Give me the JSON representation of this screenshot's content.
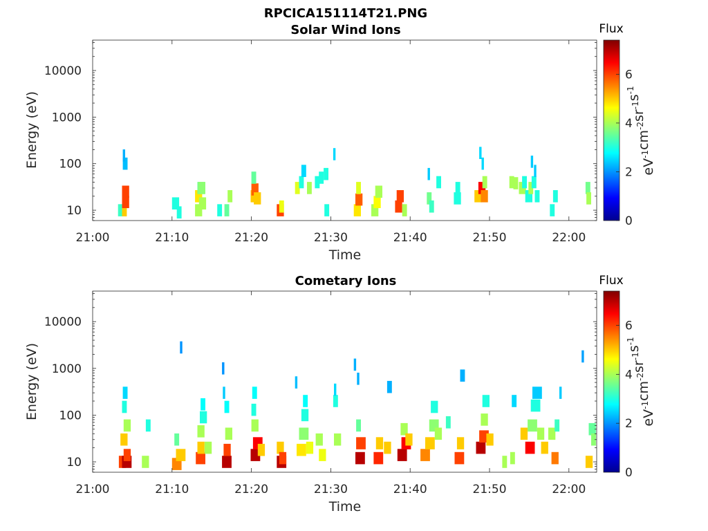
{
  "figure_title": "RPCICA151114T21.PNG",
  "colorscale": {
    "stops": [
      "#00008f",
      "#0000ff",
      "#00ffff",
      "#ffff00",
      "#ff0000",
      "#800000"
    ]
  },
  "chart_data": [
    {
      "type": "heatmap",
      "title": "Solar Wind Ions",
      "xlabel": "Time",
      "ylabel": "Energy (eV)",
      "xticks": [
        "21:00",
        "21:10",
        "21:20",
        "21:30",
        "21:40",
        "21:50",
        "22:00"
      ],
      "xlim_minutes": [
        0,
        63.5
      ],
      "yticks": [
        "10",
        "100",
        "1000",
        "10000"
      ],
      "yscale": "log",
      "ylim": [
        6,
        45000
      ],
      "colorbar": {
        "title": "Flux",
        "label": "eV-1cm-2sr-1s-1",
        "ticks": [
          "0",
          "2",
          "4",
          "6"
        ],
        "range": [
          0,
          7.4
        ]
      },
      "cells": [
        [
          3.2,
          2,
          10,
          3.2
        ],
        [
          3.7,
          2,
          10,
          5
        ],
        [
          3.7,
          3,
          15,
          6
        ],
        [
          3.7,
          3,
          25,
          6
        ],
        [
          3.8,
          2,
          100,
          2.3
        ],
        [
          3.8,
          1,
          150,
          2.2
        ],
        [
          10,
          3,
          14,
          3
        ],
        [
          10.6,
          2,
          9,
          3
        ],
        [
          12.9,
          3,
          10,
          4
        ],
        [
          12.9,
          3,
          20,
          4.8
        ],
        [
          13.2,
          3,
          30,
          3.6
        ],
        [
          13.3,
          3,
          30,
          3.8
        ],
        [
          13.4,
          3,
          14,
          4
        ],
        [
          15.7,
          2,
          10,
          3
        ],
        [
          16.6,
          2,
          10,
          3.5
        ],
        [
          17,
          2,
          20,
          4
        ],
        [
          19.9,
          3,
          20,
          5
        ],
        [
          20,
          3,
          28,
          5.8
        ],
        [
          20,
          2,
          50,
          3.5
        ],
        [
          20.3,
          3,
          18,
          5
        ],
        [
          23.2,
          3,
          10,
          6
        ],
        [
          23.5,
          2,
          12,
          4.5
        ],
        [
          25.5,
          2,
          30,
          4.4
        ],
        [
          26,
          2,
          40,
          3
        ],
        [
          26.3,
          2,
          70,
          2.5
        ],
        [
          27,
          2,
          30,
          4
        ],
        [
          28,
          2,
          40,
          3
        ],
        [
          28.5,
          2,
          50,
          3
        ],
        [
          29.1,
          2,
          60,
          3
        ],
        [
          29.2,
          2,
          10,
          3
        ],
        [
          30.3,
          1,
          160,
          2.5
        ],
        [
          32.9,
          3,
          10,
          4.8
        ],
        [
          33.1,
          3,
          17,
          5.8
        ],
        [
          33.2,
          2,
          30,
          4.4
        ],
        [
          35.1,
          3,
          10,
          4
        ],
        [
          35.4,
          3,
          15,
          4.6
        ],
        [
          35.6,
          3,
          25,
          4
        ],
        [
          38.1,
          3,
          12,
          6
        ],
        [
          38.3,
          3,
          20,
          6
        ],
        [
          39,
          2,
          10,
          4
        ],
        [
          42.1,
          2,
          18,
          3.6
        ],
        [
          42.4,
          2,
          12,
          3.2
        ],
        [
          42.2,
          1,
          60,
          2.4
        ],
        [
          43.3,
          2,
          40,
          3
        ],
        [
          45.5,
          3,
          18,
          3
        ],
        [
          45.7,
          2,
          30,
          3
        ],
        [
          48.1,
          3,
          20,
          5
        ],
        [
          48.6,
          3,
          30,
          6.5
        ],
        [
          48.9,
          3,
          20,
          5.5
        ],
        [
          49.1,
          2,
          40,
          4
        ],
        [
          48.7,
          1,
          170,
          2.5
        ],
        [
          49,
          1,
          100,
          2.5
        ],
        [
          52.5,
          2,
          40,
          4
        ],
        [
          53,
          2,
          38,
          4
        ],
        [
          53.7,
          3,
          30,
          4
        ],
        [
          54.1,
          2,
          40,
          3
        ],
        [
          54.5,
          3,
          20,
          3
        ],
        [
          54.9,
          2,
          30,
          4
        ],
        [
          55.3,
          2,
          40,
          3
        ],
        [
          55.7,
          2,
          20,
          3
        ],
        [
          55.2,
          1,
          110,
          2.4
        ],
        [
          55.6,
          1,
          70,
          2.4
        ],
        [
          57.6,
          2,
          10,
          3
        ],
        [
          58,
          2,
          20,
          3
        ],
        [
          62.1,
          2,
          30,
          3.6
        ],
        [
          62.2,
          2,
          18,
          4
        ]
      ]
    },
    {
      "type": "heatmap",
      "title": "Cometary Ions",
      "xlabel": "Time",
      "ylabel": "Energy (eV)",
      "xticks": [
        "21:00",
        "21:10",
        "21:20",
        "21:30",
        "21:40",
        "21:50",
        "22:00"
      ],
      "xlim_minutes": [
        0,
        63.5
      ],
      "yticks": [
        "10",
        "100",
        "1000",
        "10000"
      ],
      "yscale": "log",
      "ylim": [
        6,
        45000
      ],
      "colorbar": {
        "title": "Flux",
        "label": "eV-1cm-2sr-1s-1",
        "ticks": [
          "0",
          "2",
          "4",
          "6"
        ],
        "range": [
          0,
          7.4
        ]
      },
      "cells": [
        [
          3.3,
          3,
          10,
          6
        ],
        [
          3.7,
          4,
          10,
          7
        ],
        [
          3.9,
          3,
          14,
          6
        ],
        [
          3.5,
          3,
          30,
          5
        ],
        [
          3.9,
          3,
          60,
          4
        ],
        [
          3.7,
          2,
          150,
          3
        ],
        [
          3.8,
          2,
          300,
          2.5
        ],
        [
          6.2,
          3,
          10,
          4
        ],
        [
          6.7,
          2,
          60,
          3
        ],
        [
          10,
          4,
          9,
          5.5
        ],
        [
          10.5,
          4,
          14,
          5
        ],
        [
          10.3,
          2,
          30,
          3.5
        ],
        [
          11,
          1,
          2800,
          2
        ],
        [
          13,
          4,
          12,
          6
        ],
        [
          13.2,
          3,
          20,
          5
        ],
        [
          13.2,
          3,
          45,
          4
        ],
        [
          13.5,
          3,
          90,
          3
        ],
        [
          13.6,
          2,
          170,
          2.8
        ],
        [
          14.1,
          3,
          20,
          4
        ],
        [
          16.3,
          4,
          10,
          7
        ],
        [
          16.5,
          3,
          18,
          6
        ],
        [
          16.7,
          3,
          40,
          4
        ],
        [
          16.6,
          2,
          150,
          2.8
        ],
        [
          16.4,
          1,
          300,
          2.4
        ],
        [
          16.3,
          1,
          1000,
          2
        ],
        [
          19.9,
          4,
          14,
          7
        ],
        [
          20.2,
          4,
          25,
          6.5
        ],
        [
          20,
          3,
          60,
          4
        ],
        [
          20,
          2,
          130,
          3
        ],
        [
          20.1,
          2,
          300,
          2.8
        ],
        [
          20.8,
          3,
          18,
          5
        ],
        [
          23.2,
          4,
          10,
          7
        ],
        [
          23.2,
          3,
          20,
          5
        ],
        [
          23.5,
          3,
          12,
          6
        ],
        [
          25.7,
          4,
          18,
          4.8
        ],
        [
          26,
          4,
          40,
          3.8
        ],
        [
          26.3,
          3,
          100,
          3
        ],
        [
          26.5,
          2,
          200,
          2.8
        ],
        [
          25.5,
          1,
          500,
          2.3
        ],
        [
          26.9,
          3,
          20,
          4.5
        ],
        [
          28.1,
          3,
          30,
          4
        ],
        [
          28.5,
          3,
          14,
          4.5
        ],
        [
          30.4,
          3,
          30,
          4
        ],
        [
          30.3,
          2,
          200,
          3
        ],
        [
          30.4,
          1,
          350,
          2.5
        ],
        [
          33.1,
          4,
          12,
          7
        ],
        [
          33.2,
          4,
          25,
          6
        ],
        [
          33.2,
          2,
          60,
          3.5
        ],
        [
          32.9,
          1,
          1200,
          2.2
        ],
        [
          33.3,
          1,
          600,
          2.2
        ],
        [
          35.4,
          4,
          12,
          6.2
        ],
        [
          35.7,
          3,
          25,
          5
        ],
        [
          36.7,
          3,
          20,
          5
        ],
        [
          37.1,
          2,
          400,
          2.2
        ],
        [
          38.4,
          4,
          14,
          7
        ],
        [
          38.9,
          4,
          25,
          6.5
        ],
        [
          38.8,
          3,
          50,
          4
        ],
        [
          39.4,
          3,
          30,
          5
        ],
        [
          41.3,
          4,
          14,
          5.5
        ],
        [
          41.9,
          4,
          25,
          5
        ],
        [
          42.4,
          4,
          60,
          3.8
        ],
        [
          42.6,
          3,
          150,
          3
        ],
        [
          43.1,
          3,
          40,
          4
        ],
        [
          44.5,
          2,
          70,
          3.2
        ],
        [
          45.6,
          4,
          12,
          6
        ],
        [
          45.9,
          3,
          25,
          5
        ],
        [
          46.3,
          2,
          700,
          2.2
        ],
        [
          48.3,
          4,
          20,
          7
        ],
        [
          48.7,
          4,
          35,
          6
        ],
        [
          48.9,
          3,
          80,
          4
        ],
        [
          49.1,
          3,
          200,
          3
        ],
        [
          49.6,
          3,
          30,
          5
        ],
        [
          51.6,
          2,
          10,
          4
        ],
        [
          52.6,
          2,
          12,
          4
        ],
        [
          52.8,
          2,
          200,
          2.5
        ],
        [
          53.9,
          3,
          40,
          5
        ],
        [
          54.5,
          4,
          20,
          6.5
        ],
        [
          54.8,
          4,
          60,
          3.8
        ],
        [
          55.2,
          4,
          160,
          3
        ],
        [
          55.4,
          4,
          300,
          2.4
        ],
        [
          56,
          3,
          40,
          4
        ],
        [
          56.5,
          3,
          20,
          5
        ],
        [
          57.4,
          3,
          40,
          4
        ],
        [
          57.8,
          3,
          12,
          5.6
        ],
        [
          58.2,
          2,
          60,
          3.2
        ],
        [
          58.8,
          1,
          300,
          2.4
        ],
        [
          61.6,
          1,
          1800,
          2.1
        ],
        [
          62.1,
          3,
          10,
          5
        ],
        [
          62.5,
          3,
          50,
          3.5
        ],
        [
          62.8,
          2,
          30,
          3.8
        ]
      ]
    }
  ]
}
